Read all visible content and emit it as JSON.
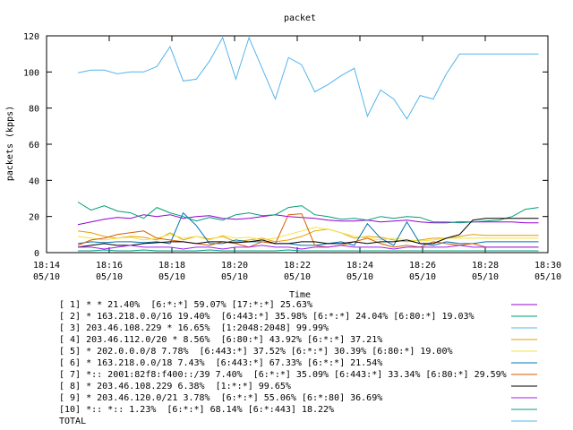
{
  "chart_data": {
    "type": "line",
    "title": "packet",
    "xlabel": "Time",
    "ylabel": "packets (kpps)",
    "ylim": [
      0,
      120
    ],
    "xlim": [
      "18:14",
      "18:30"
    ],
    "grid": false,
    "legend_placement": "bottom",
    "y_ticks": [
      "0",
      "20",
      "40",
      "60",
      "80",
      "100",
      "120"
    ],
    "x_ticks": [
      {
        "time": "18:14",
        "date": "05/10"
      },
      {
        "time": "18:16",
        "date": "05/10"
      },
      {
        "time": "18:18",
        "date": "05/10"
      },
      {
        "time": "18:20",
        "date": "05/10"
      },
      {
        "time": "18:22",
        "date": "05/10"
      },
      {
        "time": "18:24",
        "date": "05/10"
      },
      {
        "time": "18:26",
        "date": "05/10"
      },
      {
        "time": "18:28",
        "date": "05/10"
      },
      {
        "time": "18:30",
        "date": "05/10"
      }
    ],
    "x_minutes_after_18_00": [
      15.0,
      15.42,
      15.84,
      16.26,
      16.68,
      17.1,
      17.52,
      17.94,
      18.36,
      18.78,
      19.2,
      19.62,
      20.04,
      20.46,
      20.88,
      21.3,
      21.72,
      22.14,
      22.56,
      22.98,
      23.4,
      23.82,
      24.24,
      24.66,
      25.08,
      25.5,
      25.92,
      26.34,
      26.76,
      27.18,
      27.6,
      28.02,
      28.44,
      28.86,
      29.28,
      29.7
    ],
    "series": [
      {
        "label": "[ 1] * * 21.40%  [6:*:*] 59.07% [17:*:*] 25.63%",
        "color": "#9400d3",
        "values": [
          15.5,
          17,
          18.5,
          19.5,
          19,
          21,
          20,
          21,
          19,
          20,
          20.5,
          19,
          18.5,
          19,
          20,
          21,
          20,
          19.5,
          19,
          18,
          17.5,
          17.5,
          18,
          17,
          17.5,
          18,
          17,
          16.5,
          16.5,
          17,
          17,
          17,
          17,
          17,
          16.5,
          16.5
        ]
      },
      {
        "label": "[ 2] * 163.218.0.0/16 19.40%  [6:443:*] 35.98% [6:*:*] 24.04% [6:80:*] 19.03%",
        "color": "#009e73",
        "values": [
          28,
          23.5,
          26,
          23,
          22,
          19,
          25,
          22,
          20,
          17.5,
          19.5,
          18,
          21,
          22,
          20.5,
          21,
          25,
          26,
          21,
          20,
          18.5,
          19,
          18,
          20,
          19,
          20,
          19.5,
          17,
          17,
          16.5,
          17,
          17.5,
          18,
          20,
          24,
          25
        ]
      },
      {
        "label": "[ 3] 203.46.108.229 * 16.65%  [1:2048:2048] 99.99%",
        "color": "#56b4e9",
        "values": [
          99.5,
          101,
          101,
          99,
          100,
          100,
          103,
          114,
          95,
          96,
          106,
          119,
          96,
          119,
          102,
          85,
          108,
          104,
          89,
          93,
          98,
          102,
          75.5,
          90,
          85,
          74,
          87,
          85,
          99,
          110,
          110,
          110,
          110,
          110,
          110,
          110
        ]
      },
      {
        "label": "[ 4] 203.46.112.0/20 * 8.56%  [6:80:*] 43.92% [6:*:*] 37.21%",
        "color": "#e69f00",
        "values": [
          12,
          11,
          9,
          8,
          9,
          8.5,
          7,
          11,
          7,
          9,
          7.5,
          9,
          6,
          7,
          8,
          6,
          7,
          9,
          12,
          13,
          11,
          8,
          9,
          8.5,
          7,
          6,
          7,
          8,
          8,
          9,
          10,
          9.5,
          9.5,
          9.5,
          9.5,
          9.5
        ]
      },
      {
        "label": "[ 5] * 202.0.0.0/8 7.78%  [6:443:*] 37.52% [6:*:*] 30.39% [6:80:*] 19.00%",
        "color": "#f0e442",
        "values": [
          9,
          8,
          7,
          8,
          8.5,
          7,
          8,
          10,
          8,
          9,
          7,
          9.5,
          8,
          8.5,
          7,
          8,
          10,
          12,
          14,
          13,
          11,
          9,
          8,
          7,
          8,
          7,
          6.5,
          7,
          8,
          8,
          8,
          8,
          8,
          8,
          8,
          8
        ]
      },
      {
        "label": "[ 6] * 163.218.0.0/18 7.43%  [6:443:*] 67.33% [6:*:*] 21.54%",
        "color": "#0072b2",
        "values": [
          5,
          6,
          5.5,
          6,
          6,
          5.5,
          6,
          5,
          22,
          15,
          5,
          5,
          7,
          6,
          6,
          5,
          5,
          4,
          4,
          5,
          6,
          4,
          16,
          8,
          4,
          17,
          5,
          4,
          6,
          5,
          5,
          6,
          6,
          6,
          6,
          6
        ]
      },
      {
        "label": "[ 7] *:: 2001:82f8:f400::/39 7.40%  [6:*:*] 35.09% [6:443:*] 33.34% [6:80:*] 29.59%",
        "color": "#d55e00",
        "values": [
          4,
          7,
          8,
          10,
          11,
          12,
          8,
          7,
          6,
          5,
          4,
          6,
          5,
          3,
          6,
          5,
          21,
          21.5,
          4,
          3,
          4,
          6,
          8,
          5,
          3,
          4,
          3,
          6,
          5,
          4,
          5,
          3,
          3,
          3,
          3,
          3
        ]
      },
      {
        "label": "[ 8] * 203.46.108.229 6.38%  [1:*:*] 99.65%",
        "color": "#000000",
        "values": [
          3,
          4,
          5,
          4,
          4,
          5,
          5.5,
          6,
          6,
          5,
          6,
          6,
          5.5,
          6,
          7,
          5,
          5,
          6,
          6,
          5,
          5,
          6,
          5,
          6,
          6,
          7,
          5,
          5,
          8,
          10,
          18,
          19,
          19,
          19,
          19,
          19
        ]
      },
      {
        "label": "[ 9] * 203.46.120.0/21 3.78%  [6:*:*] 55.06% [6:*:80] 36.69%",
        "color": "#a020f0",
        "values": [
          3,
          3,
          2,
          3,
          4,
          3,
          3,
          3,
          2,
          3,
          3,
          2,
          3,
          3,
          4,
          3,
          3,
          2,
          3,
          3,
          4,
          3,
          3,
          3,
          2,
          3,
          3,
          3,
          3,
          4,
          3,
          3,
          3,
          3,
          3,
          3
        ]
      },
      {
        "label": "[10] *:: *:: 1.23%  [6:*:*] 68.14% [6:*:443] 18.22%",
        "color": "#00a080",
        "values": [
          1,
          1,
          1.5,
          1,
          1,
          1.5,
          1,
          1,
          1,
          1,
          1.5,
          1,
          1,
          1,
          1,
          1,
          1.5,
          1,
          1,
          1,
          1,
          1,
          1,
          1,
          1,
          1,
          1,
          1,
          1,
          1,
          1,
          1,
          1,
          1,
          1,
          1
        ]
      }
    ],
    "total": {
      "label": "TOTAL",
      "color": "#56b4e9"
    }
  }
}
